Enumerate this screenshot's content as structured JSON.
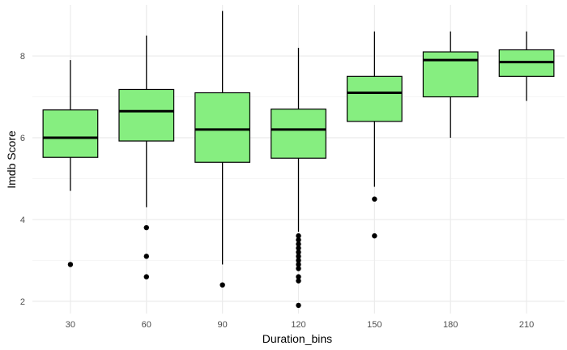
{
  "chart_data": {
    "type": "box",
    "title": "",
    "xlabel": "Duration_bins",
    "ylabel": "Imdb Score",
    "ylim": [
      1.7,
      9.25
    ],
    "yticks": [
      2,
      4,
      6,
      8
    ],
    "grid": true,
    "categories": [
      "30",
      "60",
      "90",
      "120",
      "150",
      "180",
      "210"
    ],
    "boxes": [
      {
        "category": "30",
        "whisker_low": 4.7,
        "q1": 5.52,
        "median": 6.0,
        "q3": 6.68,
        "whisker_high": 7.9,
        "outliers": [
          2.9
        ]
      },
      {
        "category": "60",
        "whisker_low": 4.3,
        "q1": 5.92,
        "median": 6.65,
        "q3": 7.18,
        "whisker_high": 8.5,
        "outliers": [
          3.8,
          3.1,
          2.6
        ]
      },
      {
        "category": "90",
        "whisker_low": 2.9,
        "q1": 5.4,
        "median": 6.2,
        "q3": 7.1,
        "whisker_high": 9.1,
        "outliers": [
          2.4
        ]
      },
      {
        "category": "120",
        "whisker_low": 3.7,
        "q1": 5.5,
        "median": 6.2,
        "q3": 6.7,
        "whisker_high": 8.2,
        "outliers": [
          3.6,
          3.5,
          3.4,
          3.3,
          3.2,
          3.1,
          3.0,
          2.9,
          2.8,
          2.6,
          2.5,
          1.9
        ]
      },
      {
        "category": "150",
        "whisker_low": 4.8,
        "q1": 6.4,
        "median": 7.1,
        "q3": 7.5,
        "whisker_high": 8.6,
        "outliers": [
          4.5,
          3.6
        ]
      },
      {
        "category": "180",
        "whisker_low": 6.0,
        "q1": 7.0,
        "median": 7.9,
        "q3": 8.1,
        "whisker_high": 8.6,
        "outliers": []
      },
      {
        "category": "210",
        "whisker_low": 6.9,
        "q1": 7.5,
        "median": 7.85,
        "q3": 8.15,
        "whisker_high": 8.6,
        "outliers": []
      }
    ],
    "colors": {
      "box_fill": "#86ee80",
      "box_stroke": "#000000",
      "grid_major": "#ebebeb",
      "grid_minor": "#f5f5f5",
      "outlier": "#000000"
    }
  }
}
